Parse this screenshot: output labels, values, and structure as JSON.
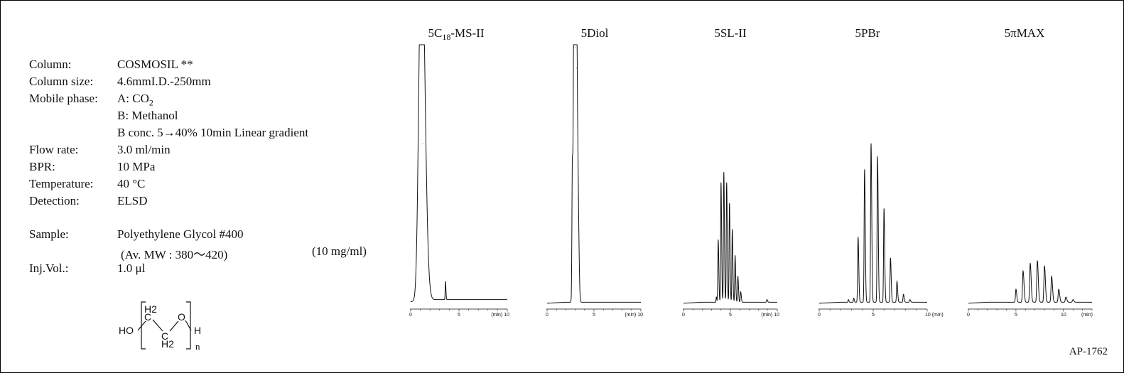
{
  "conditions": [
    {
      "label": "Column:",
      "value": "COSMOSIL **"
    },
    {
      "label": "Column size:",
      "value": "4.6mmI.D.-250mm"
    },
    {
      "label": "Mobile phase:",
      "value": "A: CO",
      "sub": "2"
    },
    {
      "label": "",
      "value": "B: Methanol"
    },
    {
      "label": "",
      "value": "B conc. 5→40% 10min Linear gradient"
    },
    {
      "label": "Flow rate:",
      "value": "3.0 ml/min"
    },
    {
      "label": "BPR:",
      "value": "10 MPa"
    },
    {
      "label": "Temperature:",
      "value": "40 °C"
    },
    {
      "label": "Detection:",
      "value": "ELSD"
    }
  ],
  "sample": {
    "label": "Sample:",
    "value": "Polyethylene Glycol #400",
    "mw": "(Av. MW : 380～420)",
    "conc": "(10 mg/ml)"
  },
  "injection": {
    "label": "Inj.Vol.:",
    "value": "1.0 μl"
  },
  "structure": {
    "ho": "HO",
    "h": "H",
    "o": "O",
    "h2_top": "H2",
    "h2_bottom": "H2",
    "c1": "C",
    "c2": "C",
    "n": "n"
  },
  "colors": {
    "line": "#111111",
    "background": "#ffffff"
  },
  "footer": {
    "code": "AP-1762"
  },
  "chart_data": [
    {
      "type": "line",
      "title": "5C",
      "title_sub": "18",
      "title_suffix": "-MS-II",
      "x_ticks": [
        "0",
        "5",
        "(min) 10"
      ],
      "xlim": [
        0,
        10
      ],
      "ylim": [
        0,
        100
      ],
      "peaks": [
        {
          "x": 1.0,
          "h": 98,
          "w": 0.22
        },
        {
          "x": 1.25,
          "h": 60,
          "w": 0.2
        },
        {
          "x": 3.6,
          "h": 7,
          "w": 0.03
        }
      ],
      "baseline": 2
    },
    {
      "type": "line",
      "title": "5Diol",
      "title_sub": "",
      "title_suffix": "",
      "x_ticks": [
        "0",
        "5",
        "(min) 10"
      ],
      "xlim": [
        0,
        10
      ],
      "ylim": [
        0,
        100
      ],
      "peaks": [
        {
          "x": 2.7,
          "h": 55,
          "w": 0.05
        },
        {
          "x": 2.85,
          "h": 98,
          "w": 0.05
        },
        {
          "x": 2.95,
          "h": 99,
          "w": 0.05
        },
        {
          "x": 3.05,
          "h": 98,
          "w": 0.05
        },
        {
          "x": 3.15,
          "h": 90,
          "w": 0.05
        },
        {
          "x": 3.3,
          "h": 40,
          "w": 0.06
        }
      ],
      "baseline": 1
    },
    {
      "type": "line",
      "title": "5SL-II",
      "title_sub": "",
      "title_suffix": "",
      "x_ticks": [
        "0",
        "5",
        "(min) 10"
      ],
      "xlim": [
        0,
        10
      ],
      "ylim": [
        0,
        100
      ],
      "peaks": [
        {
          "x": 3.5,
          "h": 2,
          "w": 0.03
        },
        {
          "x": 3.7,
          "h": 24,
          "w": 0.04
        },
        {
          "x": 4.0,
          "h": 46,
          "w": 0.04
        },
        {
          "x": 4.3,
          "h": 50,
          "w": 0.04
        },
        {
          "x": 4.6,
          "h": 46,
          "w": 0.04
        },
        {
          "x": 4.9,
          "h": 38,
          "w": 0.04
        },
        {
          "x": 5.2,
          "h": 28,
          "w": 0.04
        },
        {
          "x": 5.5,
          "h": 18,
          "w": 0.04
        },
        {
          "x": 5.8,
          "h": 10,
          "w": 0.04
        },
        {
          "x": 6.1,
          "h": 4,
          "w": 0.04
        },
        {
          "x": 8.9,
          "h": 1,
          "w": 0.04
        }
      ],
      "baseline": 1
    },
    {
      "type": "line",
      "title": "5PBr",
      "title_sub": "",
      "title_suffix": "",
      "x_ticks": [
        "0",
        "5",
        "10 (min)"
      ],
      "xlim": [
        0,
        10
      ],
      "ylim": [
        0,
        100
      ],
      "peaks": [
        {
          "x": 2.7,
          "h": 1,
          "w": 0.03
        },
        {
          "x": 3.2,
          "h": 1.5,
          "w": 0.03
        },
        {
          "x": 3.6,
          "h": 25,
          "w": 0.04
        },
        {
          "x": 4.2,
          "h": 51,
          "w": 0.04
        },
        {
          "x": 4.8,
          "h": 61,
          "w": 0.04
        },
        {
          "x": 5.4,
          "h": 56,
          "w": 0.04
        },
        {
          "x": 6.0,
          "h": 36,
          "w": 0.04
        },
        {
          "x": 6.6,
          "h": 17,
          "w": 0.04
        },
        {
          "x": 7.2,
          "h": 8,
          "w": 0.04
        },
        {
          "x": 7.8,
          "h": 3,
          "w": 0.04
        },
        {
          "x": 8.4,
          "h": 1,
          "w": 0.04
        }
      ],
      "baseline": 1
    },
    {
      "type": "line",
      "title": "5πMAX",
      "title_sub": "",
      "title_suffix": "",
      "x_ticks": [
        "0",
        "5",
        "10",
        "(min)"
      ],
      "xlim": [
        0,
        13
      ],
      "ylim": [
        0,
        100
      ],
      "peaks": [
        {
          "x": 5.0,
          "h": 5,
          "w": 0.05
        },
        {
          "x": 5.75,
          "h": 12,
          "w": 0.06
        },
        {
          "x": 6.5,
          "h": 15,
          "w": 0.06
        },
        {
          "x": 7.25,
          "h": 16,
          "w": 0.06
        },
        {
          "x": 8.0,
          "h": 14,
          "w": 0.06
        },
        {
          "x": 8.75,
          "h": 10,
          "w": 0.06
        },
        {
          "x": 9.5,
          "h": 5,
          "w": 0.06
        },
        {
          "x": 10.25,
          "h": 2,
          "w": 0.06
        },
        {
          "x": 11.0,
          "h": 1,
          "w": 0.06
        }
      ],
      "baseline": 1
    }
  ]
}
